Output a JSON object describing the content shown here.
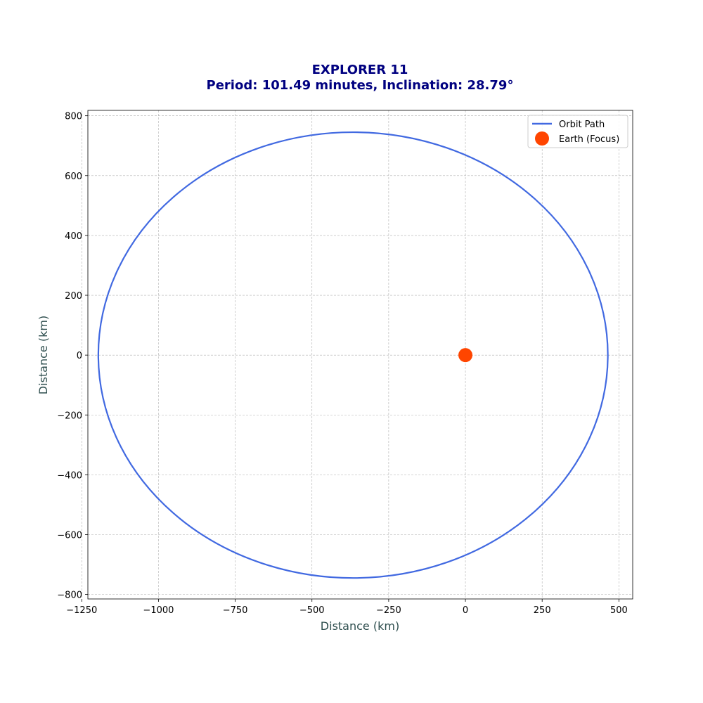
{
  "chart_data": {
    "type": "line",
    "title": "EXPLORER 11",
    "subtitle": "Period: 101.49 minutes, Inclination: 28.79°",
    "xlabel": "Distance (km)",
    "ylabel": "Distance (km)",
    "xlim": [
      -1230,
      545
    ],
    "ylim": [
      -815,
      818
    ],
    "xticks": [
      -1250,
      -1000,
      -750,
      -500,
      -250,
      0,
      250,
      500
    ],
    "yticks": [
      -800,
      -600,
      -400,
      -200,
      0,
      200,
      400,
      600,
      800
    ],
    "xtick_labels": [
      "−1250",
      "−1000",
      "−750",
      "−500",
      "−250",
      "0",
      "250",
      "500"
    ],
    "ytick_labels": [
      "−800",
      "−600",
      "−400",
      "−200",
      "0",
      "200",
      "400",
      "600",
      "800"
    ],
    "grid": true,
    "legend_position": "top-right",
    "orbit": {
      "name": "Orbit Path",
      "color": "#4169e1",
      "center_x": -366,
      "center_y": 0,
      "semi_major_axis": 830,
      "semi_minor_axis": 745
    },
    "focus": {
      "name": "Earth (Focus)",
      "color": "#ff4500",
      "x": 0,
      "y": 0
    }
  }
}
